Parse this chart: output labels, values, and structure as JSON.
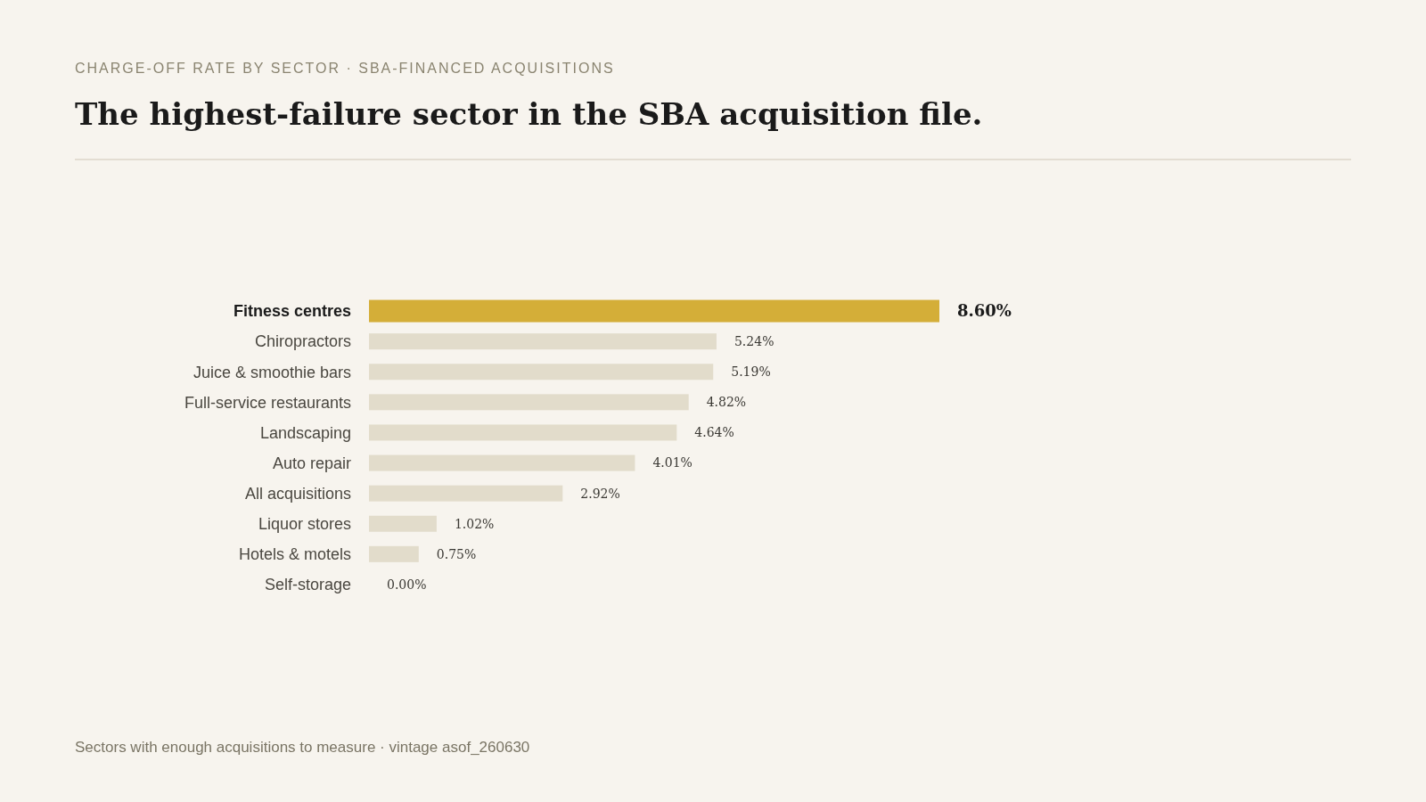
{
  "chart_data": {
    "type": "bar",
    "orientation": "horizontal",
    "subtitle": "CHARGE-OFF RATE BY SECTOR · SBA-FINANCED ACQUISITIONS",
    "title": "The highest-failure sector in the SBA acquisition file.",
    "categories": [
      "Fitness centres",
      "Chiropractors",
      "Juice & smoothie bars",
      "Full-service restaurants",
      "Landscaping",
      "Auto repair",
      "All acquisitions",
      "Liquor stores",
      "Hotels & motels",
      "Self-storage"
    ],
    "values": [
      8.6,
      5.24,
      5.19,
      4.82,
      4.64,
      4.01,
      2.92,
      1.02,
      0.75,
      0.0
    ],
    "colors": [
      "#d4ae38",
      "#e2dccb",
      "#e2dccb",
      "#e2dccb",
      "#e2dccb",
      "#e2dccb",
      "#e2dccb",
      "#e2dccb",
      "#e2dccb",
      "#e2dccb"
    ],
    "value_labels": [
      "8.60%",
      "5.24%",
      "5.19%",
      "4.82%",
      "4.64%",
      "4.01%",
      "2.92%",
      "1.02%",
      "0.75%",
      "0.00%"
    ],
    "annotations": [
      "Sectors with enough acquisitions to measure · vintage asof_260630"
    ]
  }
}
